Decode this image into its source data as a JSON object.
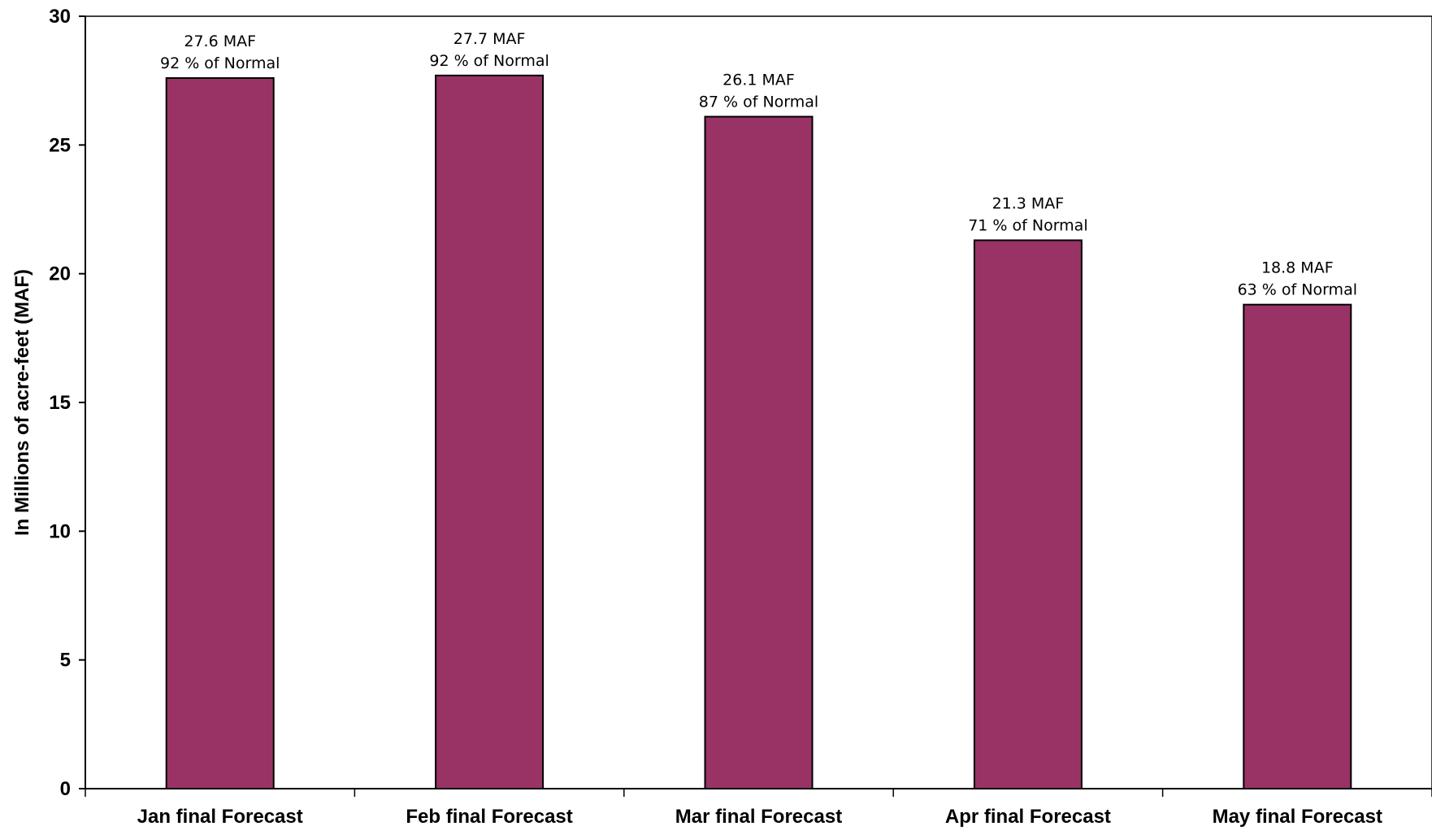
{
  "chart_data": {
    "type": "bar",
    "categories": [
      "Jan final Forecast",
      "Feb final Forecast",
      "Mar final Forecast",
      "Apr final Forecast",
      "May final Forecast"
    ],
    "values": [
      27.6,
      27.7,
      26.1,
      21.3,
      18.8
    ],
    "data_labels": [
      [
        "27.6 MAF",
        "92 % of Normal"
      ],
      [
        "27.7 MAF",
        "92 % of Normal"
      ],
      [
        "26.1 MAF",
        "87 % of Normal"
      ],
      [
        "21.3 MAF",
        "71 % of Normal"
      ],
      [
        "18.8 MAF",
        "63 % of Normal"
      ]
    ],
    "ylabel": "In Millions of acre-feet (MAF)",
    "xlabel": "",
    "ylim": [
      0,
      30
    ],
    "yticks": [
      0,
      5,
      10,
      15,
      20,
      25,
      30
    ],
    "grid": false,
    "legend": "none",
    "bar_color": "#993366",
    "bar_edge_color": "#000000"
  }
}
